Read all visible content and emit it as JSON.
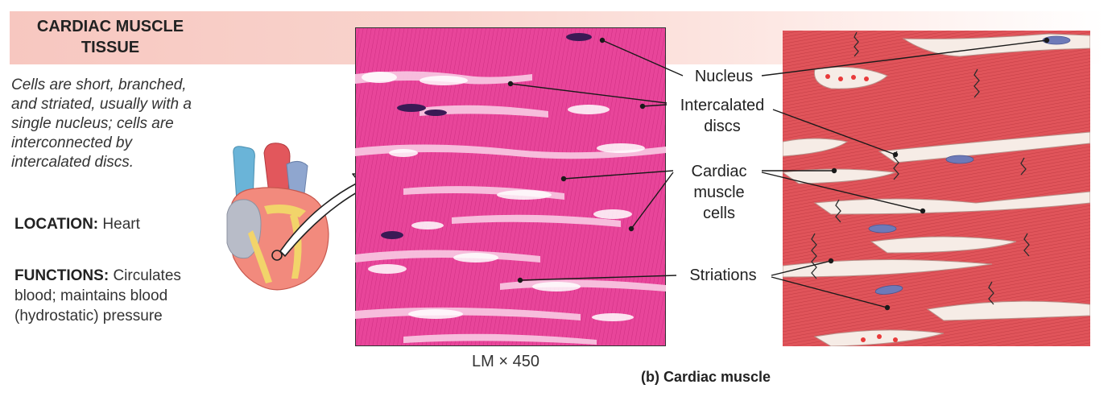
{
  "title_line1": "CARDIAC  MUSCLE",
  "title_line2": "TISSUE",
  "description_lines": [
    "Cells are short, branched,",
    "and striated, usually with a",
    "single nucleus; cells are",
    "interconnected by",
    "intercalated discs."
  ],
  "location_label": "LOCATION:",
  "location_value": "Heart",
  "functions_label": "FUNCTIONS:",
  "functions_lines": [
    "Circulates",
    "blood; maintains blood",
    "(hydrostatic) pressure"
  ],
  "callouts": {
    "nucleus": "Nucleus",
    "intercalated_line1": "Intercalated",
    "intercalated_line2": "discs",
    "cells_line1": "Cardiac",
    "cells_line2": "muscle",
    "cells_line3": "cells",
    "striations": "Striations"
  },
  "magnification": "LM × 450",
  "caption": "(b) Cardiac muscle",
  "colors": {
    "micrograph": "#e8459a",
    "muscle": "#e0545a",
    "nucleus": "#6e7ab8"
  }
}
